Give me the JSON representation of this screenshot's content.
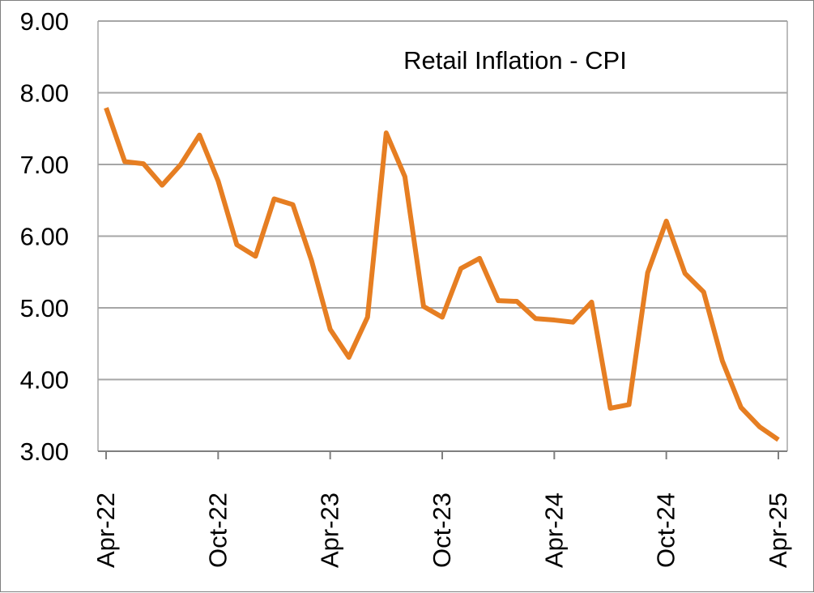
{
  "chart_data": {
    "type": "line",
    "title": "Retail Inflation - CPI",
    "xlabel": "",
    "ylabel": "",
    "ylim": [
      3.0,
      9.0
    ],
    "yticks": [
      "3.00",
      "4.00",
      "5.00",
      "6.00",
      "7.00",
      "8.00",
      "9.00"
    ],
    "xtick_labels": [
      "Apr-22",
      "Oct-22",
      "Apr-23",
      "Oct-23",
      "Apr-24",
      "Oct-24",
      "Apr-25"
    ],
    "grid": true,
    "legend": "none",
    "colors": {
      "line": "#E67E22",
      "grid": "#A6A6A6",
      "axis": "#7F7F7F"
    },
    "x": [
      "Apr-22",
      "May-22",
      "Jun-22",
      "Jul-22",
      "Aug-22",
      "Sep-22",
      "Oct-22",
      "Nov-22",
      "Dec-22",
      "Jan-23",
      "Feb-23",
      "Mar-23",
      "Apr-23",
      "May-23",
      "Jun-23",
      "Jul-23",
      "Aug-23",
      "Sep-23",
      "Oct-23",
      "Nov-23",
      "Dec-23",
      "Jan-24",
      "Feb-24",
      "Mar-24",
      "Apr-24",
      "May-24",
      "Jun-24",
      "Jul-24",
      "Aug-24",
      "Sep-24",
      "Oct-24",
      "Nov-24",
      "Dec-24",
      "Jan-25",
      "Feb-25",
      "Mar-25",
      "Apr-25"
    ],
    "series": [
      {
        "values": [
          7.79,
          7.04,
          7.01,
          6.71,
          7.0,
          7.41,
          6.77,
          5.88,
          5.72,
          6.52,
          6.44,
          5.66,
          4.7,
          4.31,
          4.87,
          7.44,
          6.83,
          5.02,
          4.87,
          5.55,
          5.69,
          5.1,
          5.09,
          4.85,
          4.83,
          4.8,
          5.08,
          3.6,
          3.65,
          5.49,
          6.21,
          5.48,
          5.22,
          4.26,
          3.61,
          3.34,
          3.16
        ]
      }
    ]
  }
}
